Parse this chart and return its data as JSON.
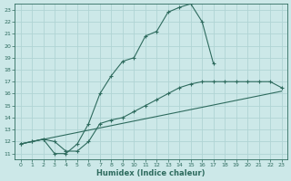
{
  "xlabel": "Humidex (Indice chaleur)",
  "ylabel": "",
  "background_color": "#cce8e8",
  "grid_color": "#b0d4d4",
  "line_color": "#2e6b5e",
  "xlim": [
    -0.5,
    23.5
  ],
  "ylim": [
    10.5,
    23.5
  ],
  "yticks": [
    11,
    12,
    13,
    14,
    15,
    16,
    17,
    18,
    19,
    20,
    21,
    22,
    23
  ],
  "xticks": [
    0,
    1,
    2,
    3,
    4,
    5,
    6,
    7,
    8,
    9,
    10,
    11,
    12,
    13,
    14,
    15,
    16,
    17,
    18,
    19,
    20,
    21,
    22,
    23
  ],
  "series1_x": [
    0,
    1,
    2,
    3,
    4,
    5,
    6,
    7,
    8,
    9,
    10,
    11,
    12,
    13,
    14,
    15,
    16,
    17
  ],
  "series1_y": [
    11.8,
    12.0,
    12.2,
    11.0,
    11.0,
    11.8,
    13.5,
    16.0,
    17.5,
    18.7,
    19.0,
    20.8,
    21.2,
    22.8,
    23.2,
    23.5,
    22.0,
    18.5
  ],
  "series2_x": [
    0,
    1,
    2,
    3,
    4,
    5,
    6,
    7,
    8,
    9,
    10,
    11,
    12,
    13,
    14,
    15,
    16,
    17,
    18,
    19,
    20,
    21,
    22,
    23
  ],
  "series2_y": [
    11.8,
    12.0,
    12.2,
    12.0,
    11.2,
    11.2,
    12.0,
    13.5,
    13.8,
    14.0,
    14.5,
    15.0,
    15.5,
    16.0,
    16.5,
    16.8,
    17.0,
    17.0,
    17.0,
    17.0,
    17.0,
    17.0,
    17.0,
    16.5
  ],
  "series3_x": [
    0,
    23
  ],
  "series3_y": [
    11.8,
    16.2
  ]
}
